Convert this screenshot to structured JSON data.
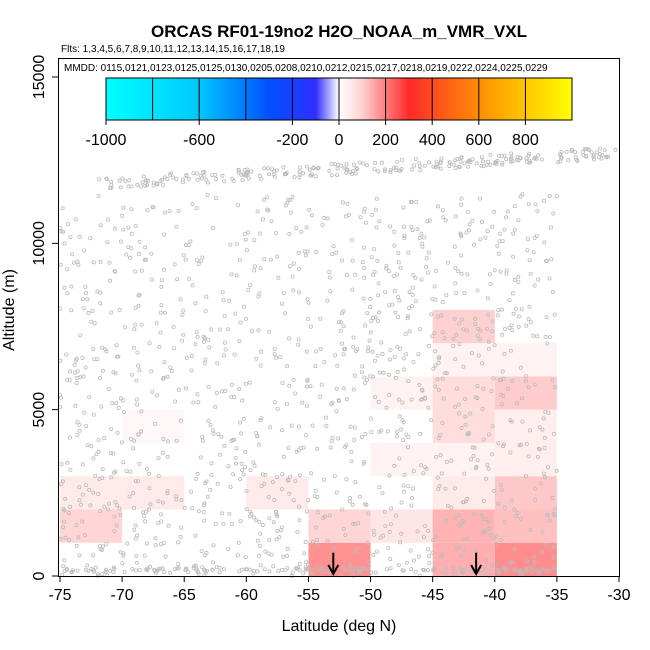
{
  "chart_data": {
    "type": "heatmap",
    "title": "ORCAS RF01-19no2 H2O_NOAA_m_VMR_VXL",
    "flights_label": "Flts: 1,3,4,5,6,7,8,9,10,11,12,13,14,15,16,17,18,19",
    "dates_label": "MMDD: 0115,0121,0123,0125,0125,0130,0205,0208,0210,0212,0215,0217,0218,0219,0222,0224,0225,0229",
    "xlabel": "Latitude (deg N)",
    "ylabel": "Altitude (m)",
    "xlim": [
      -75,
      -30
    ],
    "ylim": [
      0,
      15000
    ],
    "x_ticks": [
      -75,
      -70,
      -65,
      -60,
      -55,
      -50,
      -45,
      -40,
      -35,
      -30
    ],
    "y_ticks": [
      0,
      5000,
      10000,
      15000
    ],
    "x_tick_labels": [
      "-75",
      "-70",
      "-65",
      "-60",
      "-55",
      "-50",
      "-45",
      "-40",
      "-35",
      "-30"
    ],
    "y_tick_labels": [
      "0",
      "5000",
      "10000",
      "15000"
    ],
    "colorbar": {
      "range": [
        -1000,
        1000
      ],
      "ticks": [
        -1000,
        -600,
        -200,
        0,
        200,
        400,
        600,
        800
      ],
      "tick_labels": [
        "-1000",
        "-600",
        "-200",
        "0",
        "200",
        "400",
        "600",
        "800"
      ],
      "divisions": [
        -800,
        -600,
        -400,
        -200,
        0,
        200,
        400,
        600,
        800
      ]
    },
    "cells": [
      {
        "lat": [
          -75,
          -70
        ],
        "alt": [
          1000,
          2000
        ],
        "value": 100
      },
      {
        "lat": [
          -75,
          -70
        ],
        "alt": [
          2000,
          3000
        ],
        "value": 50
      },
      {
        "lat": [
          -70,
          -65
        ],
        "alt": [
          2000,
          3000
        ],
        "value": 50
      },
      {
        "lat": [
          -70,
          -65
        ],
        "alt": [
          4000,
          5000
        ],
        "value": 20
      },
      {
        "lat": [
          -60,
          -55
        ],
        "alt": [
          2000,
          3000
        ],
        "value": 50
      },
      {
        "lat": [
          -55,
          -50
        ],
        "alt": [
          0,
          1000
        ],
        "value": 260
      },
      {
        "lat": [
          -55,
          -50
        ],
        "alt": [
          1000,
          2000
        ],
        "value": 100
      },
      {
        "lat": [
          -50,
          -45
        ],
        "alt": [
          1000,
          2000
        ],
        "value": 60
      },
      {
        "lat": [
          -50,
          -45
        ],
        "alt": [
          3000,
          4000
        ],
        "value": 30
      },
      {
        "lat": [
          -50,
          -45
        ],
        "alt": [
          5000,
          6000
        ],
        "value": 30
      },
      {
        "lat": [
          -45,
          -40
        ],
        "alt": [
          0,
          1000
        ],
        "value": 190
      },
      {
        "lat": [
          -45,
          -40
        ],
        "alt": [
          1000,
          2000
        ],
        "value": 180
      },
      {
        "lat": [
          -45,
          -40
        ],
        "alt": [
          2000,
          3000
        ],
        "value": 50
      },
      {
        "lat": [
          -45,
          -40
        ],
        "alt": [
          3000,
          4000
        ],
        "value": 30
      },
      {
        "lat": [
          -45,
          -40
        ],
        "alt": [
          4000,
          5000
        ],
        "value": 80
      },
      {
        "lat": [
          -45,
          -40
        ],
        "alt": [
          5000,
          6000
        ],
        "value": 80
      },
      {
        "lat": [
          -45,
          -40
        ],
        "alt": [
          6000,
          7000
        ],
        "value": 30
      },
      {
        "lat": [
          -45,
          -40
        ],
        "alt": [
          7000,
          8000
        ],
        "value": 110
      },
      {
        "lat": [
          -40,
          -35
        ],
        "alt": [
          0,
          1000
        ],
        "value": 270
      },
      {
        "lat": [
          -40,
          -35
        ],
        "alt": [
          1000,
          2000
        ],
        "value": 150
      },
      {
        "lat": [
          -40,
          -35
        ],
        "alt": [
          2000,
          3000
        ],
        "value": 130
      },
      {
        "lat": [
          -40,
          -35
        ],
        "alt": [
          3000,
          4000
        ],
        "value": 40
      },
      {
        "lat": [
          -40,
          -35
        ],
        "alt": [
          4000,
          5000
        ],
        "value": 40
      },
      {
        "lat": [
          -40,
          -35
        ],
        "alt": [
          5000,
          6000
        ],
        "value": 120
      },
      {
        "lat": [
          -40,
          -35
        ],
        "alt": [
          6000,
          7000
        ],
        "value": 30
      }
    ],
    "arrows": [
      {
        "lat": -53,
        "alt_top": 700,
        "alt_bottom": 0
      },
      {
        "lat": -41.5,
        "alt_top": 700,
        "alt_bottom": 0
      }
    ],
    "colors": {
      "point": "#bcbcbc",
      "neg_end": "#00ffff",
      "neg_mid": "#2f2fff",
      "pos_mid": "#ff2a2a",
      "pos_end": "#ffff00"
    }
  }
}
